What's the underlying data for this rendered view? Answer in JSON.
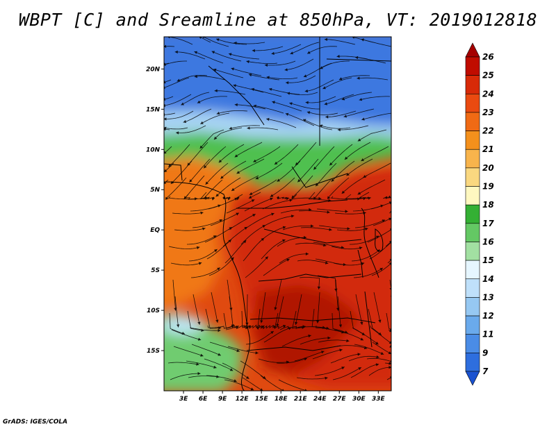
{
  "title": "WBPT [C] and Sreamline at 850hPa, VT: 2019012818",
  "footer": "GrADS: IGES/COLA",
  "map": {
    "lon_range": [
      0,
      35
    ],
    "lat_range": [
      -20,
      24
    ],
    "lat_ticks": [
      {
        "value": 20,
        "label": "20N"
      },
      {
        "value": 15,
        "label": "15N"
      },
      {
        "value": 10,
        "label": "10N"
      },
      {
        "value": 5,
        "label": "5N"
      },
      {
        "value": 0,
        "label": "EQ"
      },
      {
        "value": -5,
        "label": "5S"
      },
      {
        "value": -10,
        "label": "10S"
      },
      {
        "value": -15,
        "label": "15S"
      }
    ],
    "lon_ticks": [
      {
        "value": 3,
        "label": "3E"
      },
      {
        "value": 6,
        "label": "6E"
      },
      {
        "value": 9,
        "label": "9E"
      },
      {
        "value": 12,
        "label": "12E"
      },
      {
        "value": 15,
        "label": "15E"
      },
      {
        "value": 18,
        "label": "18E"
      },
      {
        "value": 21,
        "label": "21E"
      },
      {
        "value": 24,
        "label": "24E"
      },
      {
        "value": 27,
        "label": "27E"
      },
      {
        "value": 30,
        "label": "30E"
      },
      {
        "value": 33,
        "label": "33E"
      }
    ],
    "regions": [
      {
        "name": "cold-north",
        "color": "#3c78e0"
      },
      {
        "name": "cool-band",
        "color": "#a8d4f4"
      },
      {
        "name": "green-band",
        "color": "#50c050"
      },
      {
        "name": "warm-west",
        "color": "#f07818"
      },
      {
        "name": "hot-interior",
        "color": "#d22a0a"
      },
      {
        "name": "core-hot",
        "color": "#b01800"
      },
      {
        "name": "south-west-green",
        "color": "#70cc70"
      }
    ]
  },
  "colorbar": {
    "levels": [
      {
        "label": "26",
        "color": "#a50000"
      },
      {
        "label": "25",
        "color": "#c00c00"
      },
      {
        "label": "24",
        "color": "#d82a08"
      },
      {
        "label": "23",
        "color": "#ea4a10"
      },
      {
        "label": "22",
        "color": "#f06a14"
      },
      {
        "label": "21",
        "color": "#f4901c"
      },
      {
        "label": "20",
        "color": "#f8b44c"
      },
      {
        "label": "19",
        "color": "#fad880"
      },
      {
        "label": "18",
        "color": "#fff8c0"
      },
      {
        "label": "17",
        "color": "#34b034"
      },
      {
        "label": "16",
        "color": "#64c864"
      },
      {
        "label": "15",
        "color": "#a2e0a2"
      },
      {
        "label": "14",
        "color": "#e6f6ff"
      },
      {
        "label": "13",
        "color": "#bfe0fa"
      },
      {
        "label": "12",
        "color": "#96c8f2"
      },
      {
        "label": "11",
        "color": "#6aaaec"
      },
      {
        "label": "9",
        "color": "#4a8ce6"
      },
      {
        "label": "7",
        "color": "#2e6ede"
      },
      {
        "label": "",
        "color": "#1a52d0"
      }
    ]
  }
}
